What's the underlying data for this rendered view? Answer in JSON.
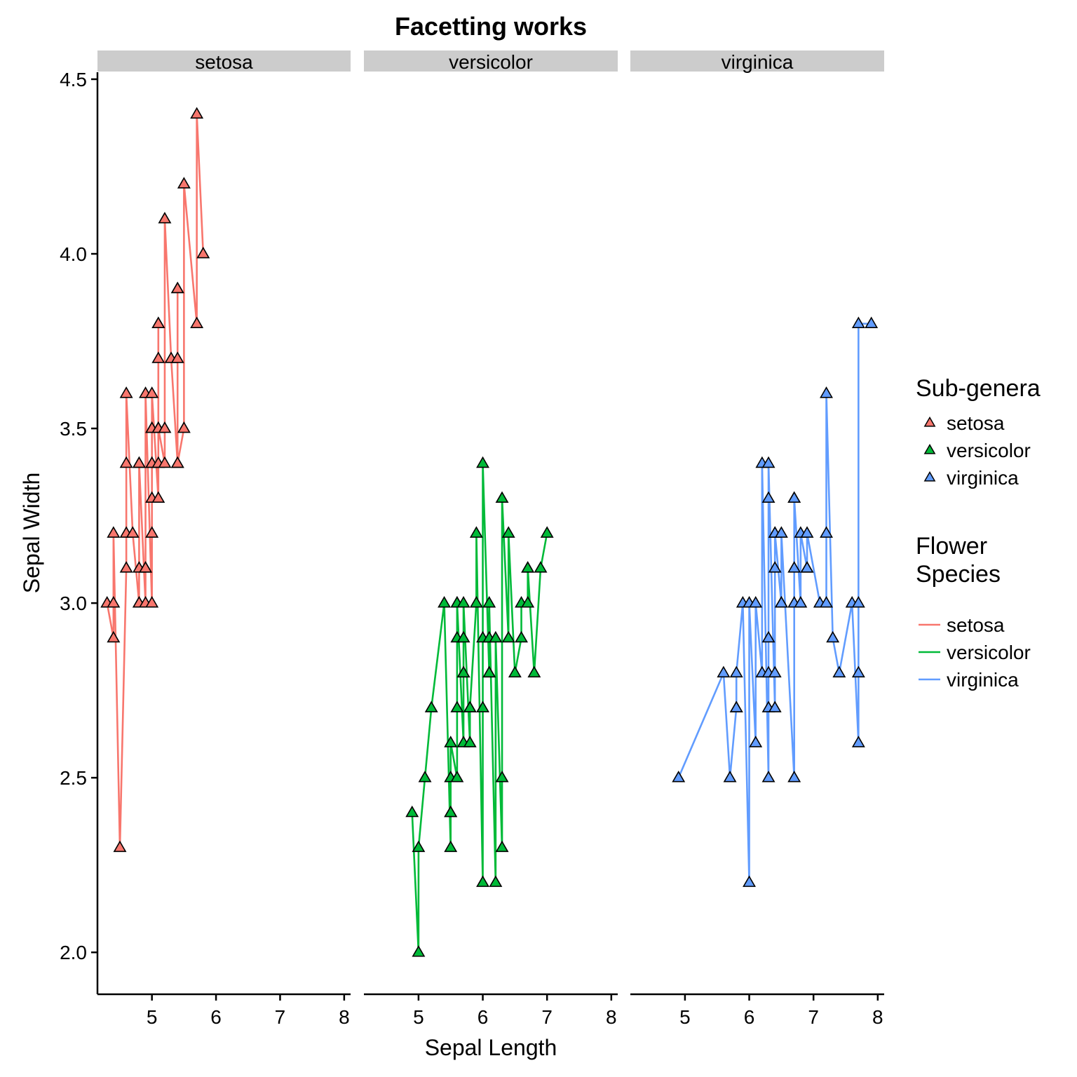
{
  "chart_data": {
    "type": "line",
    "title": "Facetting works",
    "xlabel": "Sepal Length",
    "ylabel": "Sepal Width",
    "xlim": [
      4.15,
      8.1
    ],
    "ylim": [
      1.88,
      4.52
    ],
    "x_ticks": [
      5,
      6,
      7,
      8
    ],
    "y_ticks": [
      2.0,
      2.5,
      3.0,
      3.5,
      4.0,
      4.5
    ],
    "y_tick_labels": [
      "2.0",
      "2.5",
      "3.0",
      "3.5",
      "4.0",
      "4.5"
    ],
    "grid": false,
    "legend_position": "right",
    "legends": [
      {
        "title": "Sub-genera",
        "kind": "point",
        "entries": [
          "setosa",
          "versicolor",
          "virginica"
        ]
      },
      {
        "title": "Flower\nSpecies",
        "kind": "line",
        "entries": [
          "setosa",
          "versicolor",
          "virginica"
        ]
      }
    ],
    "series": [
      {
        "name": "setosa",
        "color": "#F8766D",
        "marker": "triangle",
        "x": [
          4.3,
          4.4,
          4.4,
          4.4,
          4.5,
          4.6,
          4.6,
          4.6,
          4.6,
          4.7,
          4.8,
          4.8,
          4.8,
          4.8,
          4.8,
          4.9,
          4.9,
          4.9,
          4.9,
          5.0,
          5.0,
          5.0,
          5.0,
          5.0,
          5.0,
          5.0,
          5.0,
          5.1,
          5.1,
          5.1,
          5.1,
          5.1,
          5.1,
          5.1,
          5.1,
          5.1,
          5.2,
          5.2,
          5.2,
          5.3,
          5.4,
          5.4,
          5.4,
          5.4,
          5.4,
          5.5,
          5.5,
          5.7,
          5.7,
          5.8
        ],
        "y": [
          3.0,
          2.9,
          3.0,
          3.2,
          2.3,
          3.1,
          3.2,
          3.4,
          3.6,
          3.2,
          3.0,
          3.0,
          3.1,
          3.4,
          3.4,
          3.0,
          3.1,
          3.1,
          3.6,
          3.0,
          3.2,
          3.3,
          3.4,
          3.4,
          3.5,
          3.5,
          3.6,
          3.3,
          3.4,
          3.5,
          3.5,
          3.7,
          3.8,
          3.8,
          3.8,
          3.5,
          3.4,
          3.5,
          4.1,
          3.7,
          3.4,
          3.7,
          3.9,
          3.9,
          3.4,
          3.5,
          4.2,
          3.8,
          4.4,
          4.0
        ]
      },
      {
        "name": "versicolor",
        "color": "#00BA38",
        "marker": "triangle",
        "x": [
          4.9,
          5.0,
          5.0,
          5.1,
          5.2,
          5.4,
          5.5,
          5.5,
          5.5,
          5.5,
          5.5,
          5.6,
          5.6,
          5.6,
          5.6,
          5.6,
          5.7,
          5.7,
          5.7,
          5.7,
          5.7,
          5.8,
          5.8,
          5.8,
          5.9,
          5.9,
          6.0,
          6.0,
          6.0,
          6.0,
          6.1,
          6.1,
          6.1,
          6.1,
          6.2,
          6.2,
          6.3,
          6.3,
          6.3,
          6.4,
          6.4,
          6.5,
          6.6,
          6.6,
          6.7,
          6.7,
          6.7,
          6.8,
          6.9,
          7.0
        ],
        "y": [
          2.4,
          2.0,
          2.3,
          2.5,
          2.7,
          3.0,
          2.3,
          2.4,
          2.4,
          2.5,
          2.6,
          2.5,
          2.7,
          2.9,
          3.0,
          3.0,
          2.6,
          2.8,
          2.8,
          2.9,
          3.0,
          2.6,
          2.7,
          2.7,
          3.0,
          3.2,
          2.2,
          2.7,
          2.9,
          3.4,
          2.8,
          2.8,
          2.9,
          3.0,
          2.2,
          2.9,
          2.3,
          2.5,
          3.3,
          2.9,
          3.2,
          2.8,
          2.9,
          3.0,
          3.0,
          3.1,
          3.1,
          2.8,
          3.1,
          3.2
        ]
      },
      {
        "name": "virginica",
        "color": "#619CFF",
        "marker": "triangle",
        "x": [
          4.9,
          5.6,
          5.7,
          5.8,
          5.8,
          5.8,
          5.9,
          6.0,
          6.0,
          6.1,
          6.1,
          6.2,
          6.2,
          6.3,
          6.3,
          6.3,
          6.3,
          6.3,
          6.3,
          6.4,
          6.4,
          6.4,
          6.4,
          6.4,
          6.5,
          6.5,
          6.5,
          6.5,
          6.7,
          6.7,
          6.7,
          6.7,
          6.7,
          6.8,
          6.8,
          6.9,
          6.9,
          6.9,
          7.1,
          7.2,
          7.2,
          7.2,
          7.3,
          7.4,
          7.6,
          7.7,
          7.7,
          7.7,
          7.7,
          7.9
        ],
        "y": [
          2.5,
          2.8,
          2.5,
          2.7,
          2.7,
          2.8,
          3.0,
          2.2,
          3.0,
          2.6,
          3.0,
          2.8,
          3.4,
          2.5,
          2.7,
          2.8,
          2.9,
          3.3,
          3.4,
          2.7,
          2.8,
          3.1,
          3.2,
          3.2,
          3.0,
          3.0,
          3.0,
          3.2,
          2.5,
          3.0,
          3.1,
          3.3,
          3.3,
          3.0,
          3.2,
          3.1,
          3.1,
          3.2,
          3.0,
          3.0,
          3.2,
          3.6,
          2.9,
          2.8,
          3.0,
          2.6,
          2.8,
          3.0,
          3.8,
          3.8
        ]
      }
    ]
  }
}
